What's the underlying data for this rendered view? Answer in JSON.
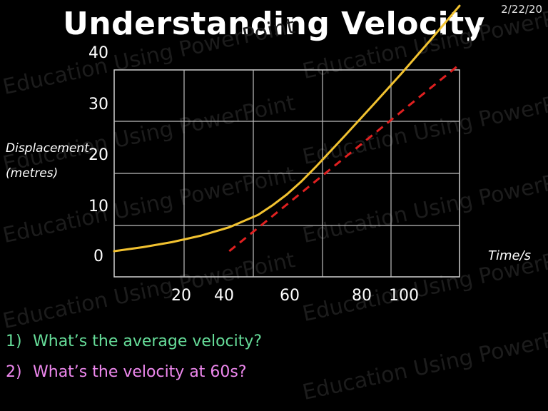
{
  "slide": {
    "date": "2/22/20",
    "title": "Understanding Velocity",
    "watermark_text": "Education Using PowerPoint"
  },
  "questions": [
    {
      "number": "1)",
      "text": "What’s the average velocity?",
      "color": "#66dd99"
    },
    {
      "number": "2)",
      "text": "What’s the velocity at 60s?",
      "color": "#ee88ee"
    }
  ],
  "chart_data": {
    "type": "line",
    "xlabel": "Time/s",
    "ylabel_line1": "Displacement",
    "ylabel_line2": "(metres)",
    "y_ticks": [
      "40",
      "30",
      "20",
      "10",
      "0"
    ],
    "x_tick_labels": [
      "20",
      "40",
      "60",
      "80",
      "100"
    ],
    "grid": true,
    "series": [
      {
        "style": "solid",
        "color": "#f2c230",
        "x": [
          0,
          10,
          20,
          30,
          40,
          50,
          55,
          60,
          65,
          70,
          80,
          90,
          100,
          110,
          120
        ],
        "y": [
          0,
          0.8,
          1.8,
          3.1,
          4.8,
          7.3,
          9.2,
          11.4,
          14.0,
          16.9,
          23.1,
          29.4,
          35.8,
          42.5,
          49.3
        ]
      },
      {
        "style": "dashed",
        "color": "#e02020",
        "x": [
          40,
          120
        ],
        "y": [
          0,
          37.5
        ]
      }
    ]
  }
}
